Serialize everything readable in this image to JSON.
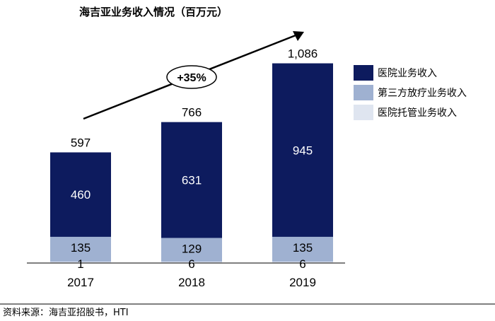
{
  "title": "海吉亚业务收入情况（百万元）",
  "source": "资料来源：海吉亚招股书，HTI",
  "growth_label": "+35%",
  "colors": {
    "hospital": "#0d1b5e",
    "radiotherapy": "#9fb1d1",
    "management": "#dfe5f0"
  },
  "chart_data": {
    "type": "bar",
    "stacked": true,
    "title": "海吉亚业务收入情况（百万元）",
    "categories": [
      "2017",
      "2018",
      "2019"
    ],
    "series": [
      {
        "name": "医院托管业务收入",
        "key": "management",
        "values": [
          1,
          6,
          6
        ]
      },
      {
        "name": "第三方放疗业务收入",
        "key": "radiotherapy",
        "values": [
          135,
          129,
          135
        ]
      },
      {
        "name": "医院业务收入",
        "key": "hospital",
        "values": [
          460,
          631,
          945
        ]
      }
    ],
    "totals": [
      "597",
      "766",
      "1,086"
    ],
    "legend_order": [
      "医院业务收入",
      "第三方放疗业务收入",
      "医院托管业务收入"
    ],
    "annotation": "+35%",
    "ylim": [
      0,
      1086
    ],
    "xlabel": "",
    "ylabel": ""
  }
}
